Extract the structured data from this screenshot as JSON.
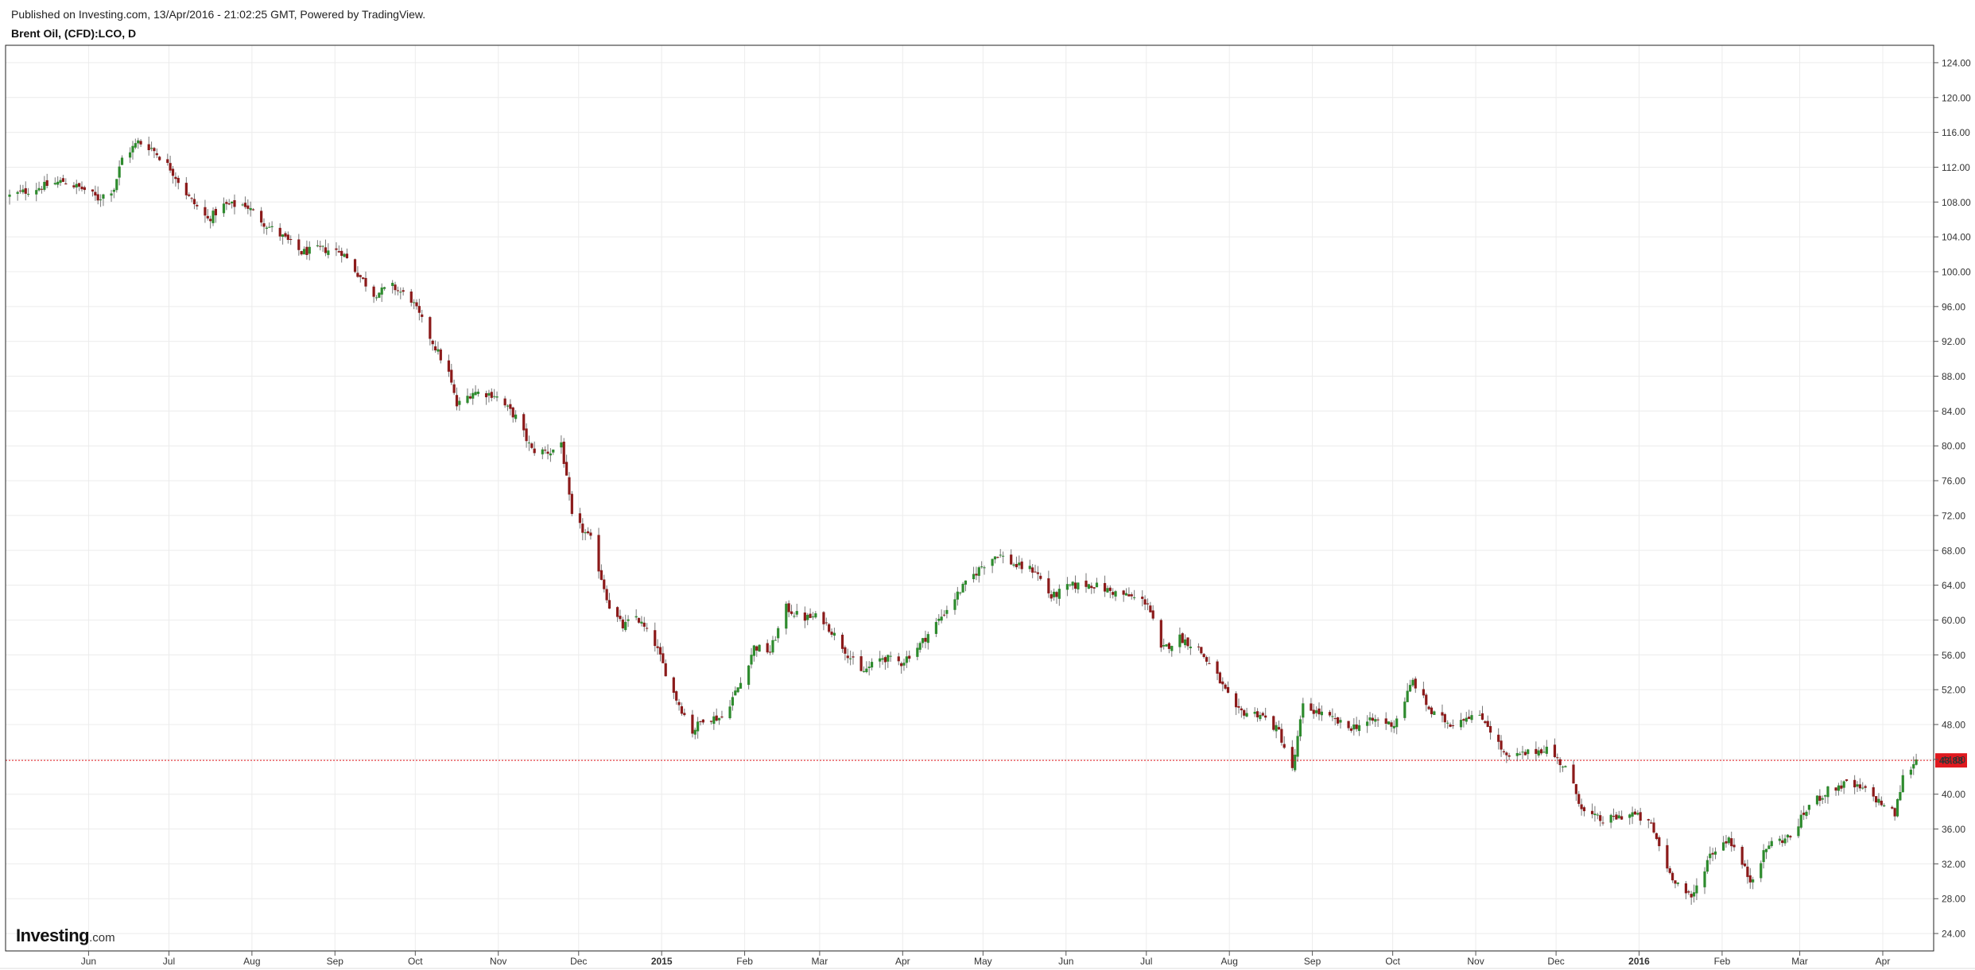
{
  "header": {
    "published": "Published on Investing.com, 13/Apr/2016 - 21:02:25 GMT, Powered by TradingView.",
    "symbol": "Brent Oil, (CFD):LCO, D"
  },
  "logo": {
    "brand": "Investing",
    "domain": ".com"
  },
  "colors": {
    "up": "#2e8b2e",
    "down": "#8b1a1a",
    "price_line": "#e0191f",
    "grid": "#ececec",
    "border": "#222222"
  },
  "chart_data": {
    "type": "candlestick",
    "x_range": [
      "2014-05-01",
      "2016-04-20"
    ],
    "ylim": [
      22,
      126
    ],
    "y_ticks": [
      24,
      28,
      32,
      36,
      40,
      44,
      48,
      52,
      56,
      60,
      64,
      68,
      72,
      76,
      80,
      84,
      88,
      92,
      96,
      100,
      104,
      108,
      112,
      116,
      120,
      124
    ],
    "x_ticks": [
      {
        "date": "2014-06-01",
        "label": "Jun",
        "bold": false
      },
      {
        "date": "2014-07-01",
        "label": "Jul",
        "bold": false
      },
      {
        "date": "2014-08-01",
        "label": "Aug",
        "bold": false
      },
      {
        "date": "2014-09-01",
        "label": "Sep",
        "bold": false
      },
      {
        "date": "2014-10-01",
        "label": "Oct",
        "bold": false
      },
      {
        "date": "2014-11-01",
        "label": "Nov",
        "bold": false
      },
      {
        "date": "2014-12-01",
        "label": "Dec",
        "bold": false
      },
      {
        "date": "2015-01-01",
        "label": "2015",
        "bold": true
      },
      {
        "date": "2015-02-01",
        "label": "Feb",
        "bold": false
      },
      {
        "date": "2015-03-01",
        "label": "Mar",
        "bold": false
      },
      {
        "date": "2015-04-01",
        "label": "Apr",
        "bold": false
      },
      {
        "date": "2015-05-01",
        "label": "May",
        "bold": false
      },
      {
        "date": "2015-06-01",
        "label": "Jun",
        "bold": false
      },
      {
        "date": "2015-07-01",
        "label": "Jul",
        "bold": false
      },
      {
        "date": "2015-08-01",
        "label": "Aug",
        "bold": false
      },
      {
        "date": "2015-09-01",
        "label": "Sep",
        "bold": false
      },
      {
        "date": "2015-10-01",
        "label": "Oct",
        "bold": false
      },
      {
        "date": "2015-11-01",
        "label": "Nov",
        "bold": false
      },
      {
        "date": "2015-12-01",
        "label": "Dec",
        "bold": false
      },
      {
        "date": "2016-01-01",
        "label": "2016",
        "bold": true
      },
      {
        "date": "2016-02-01",
        "label": "Feb",
        "bold": false
      },
      {
        "date": "2016-03-01",
        "label": "Mar",
        "bold": false
      },
      {
        "date": "2016-04-01",
        "label": "Apr",
        "bold": false
      }
    ],
    "current_price": 43.88,
    "current_price_label": "43.88",
    "close_path": [
      [
        "2014-05-02",
        108.7
      ],
      [
        "2014-05-12",
        109.6
      ],
      [
        "2014-05-22",
        110.4
      ],
      [
        "2014-05-30",
        109.4
      ],
      [
        "2014-06-04",
        108.4
      ],
      [
        "2014-06-10",
        109.6
      ],
      [
        "2014-06-13",
        113.0
      ],
      [
        "2014-06-19",
        114.9
      ],
      [
        "2014-06-24",
        114.2
      ],
      [
        "2014-07-01",
        111.9
      ],
      [
        "2014-07-08",
        108.5
      ],
      [
        "2014-07-15",
        106.0
      ],
      [
        "2014-07-21",
        107.6
      ],
      [
        "2014-07-29",
        107.7
      ],
      [
        "2014-08-05",
        105.6
      ],
      [
        "2014-08-12",
        104.0
      ],
      [
        "2014-08-19",
        102.2
      ],
      [
        "2014-08-26",
        102.6
      ],
      [
        "2014-09-03",
        102.3
      ],
      [
        "2014-09-08",
        100.2
      ],
      [
        "2014-09-15",
        97.4
      ],
      [
        "2014-09-22",
        98.3
      ],
      [
        "2014-09-29",
        96.8
      ],
      [
        "2014-10-06",
        92.5
      ],
      [
        "2014-10-13",
        88.3
      ],
      [
        "2014-10-16",
        84.6
      ],
      [
        "2014-10-22",
        86.2
      ],
      [
        "2014-10-30",
        85.9
      ],
      [
        "2014-11-07",
        83.3
      ],
      [
        "2014-11-13",
        79.5
      ],
      [
        "2014-11-20",
        79.3
      ],
      [
        "2014-11-24",
        80.4
      ],
      [
        "2014-11-28",
        71.8
      ],
      [
        "2014-12-05",
        69.2
      ],
      [
        "2014-12-12",
        61.6
      ],
      [
        "2014-12-17",
        59.2
      ],
      [
        "2014-12-22",
        60.4
      ],
      [
        "2014-12-29",
        57.3
      ],
      [
        "2015-01-05",
        51.6
      ],
      [
        "2015-01-12",
        47.2
      ],
      [
        "2015-01-16",
        48.7
      ],
      [
        "2015-01-23",
        48.8
      ],
      [
        "2015-01-30",
        52.8
      ],
      [
        "2015-02-04",
        56.9
      ],
      [
        "2015-02-10",
        56.4
      ],
      [
        "2015-02-16",
        61.4
      ],
      [
        "2015-02-22",
        60.2
      ],
      [
        "2015-03-01",
        60.4
      ],
      [
        "2015-03-09",
        57.0
      ],
      [
        "2015-03-16",
        53.9
      ],
      [
        "2015-03-24",
        55.7
      ],
      [
        "2015-03-31",
        55.1
      ],
      [
        "2015-04-07",
        57.2
      ],
      [
        "2015-04-14",
        60.0
      ],
      [
        "2015-04-22",
        63.4
      ],
      [
        "2015-04-30",
        66.2
      ],
      [
        "2015-05-06",
        67.6
      ],
      [
        "2015-05-13",
        66.2
      ],
      [
        "2015-05-20",
        65.7
      ],
      [
        "2015-05-26",
        62.6
      ],
      [
        "2015-06-02",
        63.9
      ],
      [
        "2015-06-10",
        64.1
      ],
      [
        "2015-06-17",
        63.3
      ],
      [
        "2015-06-24",
        62.7
      ],
      [
        "2015-07-01",
        62.0
      ],
      [
        "2015-07-06",
        56.5
      ],
      [
        "2015-07-13",
        58.0
      ],
      [
        "2015-07-20",
        56.7
      ],
      [
        "2015-07-27",
        53.5
      ],
      [
        "2015-08-03",
        49.5
      ],
      [
        "2015-08-12",
        49.2
      ],
      [
        "2015-08-19",
        47.2
      ],
      [
        "2015-08-24",
        42.7
      ],
      [
        "2015-08-28",
        50.1
      ],
      [
        "2015-09-04",
        49.2
      ],
      [
        "2015-09-14",
        47.6
      ],
      [
        "2015-09-24",
        48.5
      ],
      [
        "2015-10-01",
        48.0
      ],
      [
        "2015-10-08",
        53.0
      ],
      [
        "2015-10-15",
        49.3
      ],
      [
        "2015-10-22",
        48.1
      ],
      [
        "2015-10-29",
        49.1
      ],
      [
        "2015-11-04",
        48.5
      ],
      [
        "2015-11-12",
        44.1
      ],
      [
        "2015-11-20",
        44.7
      ],
      [
        "2015-11-27",
        45.3
      ],
      [
        "2015-12-04",
        43.0
      ],
      [
        "2015-12-11",
        37.9
      ],
      [
        "2015-12-18",
        36.9
      ],
      [
        "2015-12-29",
        37.8
      ],
      [
        "2016-01-05",
        36.4
      ],
      [
        "2016-01-12",
        30.9
      ],
      [
        "2016-01-20",
        27.9
      ],
      [
        "2016-01-27",
        33.1
      ],
      [
        "2016-02-03",
        35.0
      ],
      [
        "2016-02-11",
        30.1
      ],
      [
        "2016-02-18",
        34.3
      ],
      [
        "2016-02-26",
        35.1
      ],
      [
        "2016-03-04",
        38.7
      ],
      [
        "2016-03-11",
        40.4
      ],
      [
        "2016-03-18",
        41.2
      ],
      [
        "2016-03-25",
        40.4
      ],
      [
        "2016-04-01",
        38.7
      ],
      [
        "2016-04-05",
        37.7
      ],
      [
        "2016-04-08",
        41.9
      ],
      [
        "2016-04-13",
        44.0
      ]
    ]
  }
}
